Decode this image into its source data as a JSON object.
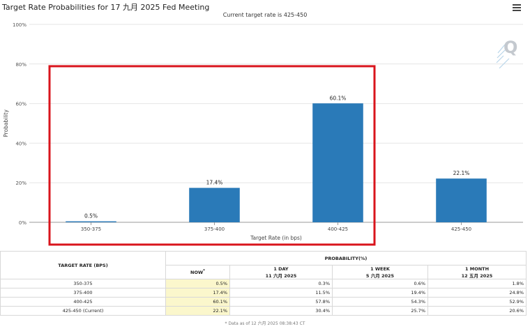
{
  "header": {
    "title": "Target Rate Probabilities for 17 九月 2025 Fed Meeting",
    "subtitle": "Current target rate is 425-450"
  },
  "logo_glyph": "Q",
  "chart_data": {
    "type": "bar",
    "categories": [
      "350-375",
      "375-400",
      "400-425",
      "425-450"
    ],
    "values": [
      0.5,
      17.4,
      60.1,
      22.1
    ],
    "data_labels": [
      "0.5%",
      "17.4%",
      "60.1%",
      "22.1%"
    ],
    "xlabel": "Target Rate (in bps)",
    "ylabel": "Probability",
    "ylim": [
      0,
      100
    ],
    "yticks": [
      0,
      20,
      40,
      60,
      80,
      100
    ],
    "ytick_labels": [
      "0%",
      "20%",
      "40%",
      "60%",
      "80%",
      "100%"
    ],
    "bar_color": "#2a7ab8",
    "highlight_color": "#d9141c",
    "highlighted_categories": [
      "350-375",
      "375-400",
      "400-425"
    ]
  },
  "table": {
    "col_target": "TARGET RATE (BPS)",
    "col_probability": "PROBABILITY(%)",
    "sub": [
      {
        "line1": "NOW",
        "sup": "*",
        "line2": ""
      },
      {
        "line1": "1 DAY",
        "line2": "11 六月 2025"
      },
      {
        "line1": "1 WEEK",
        "line2": "5 六月 2025"
      },
      {
        "line1": "1 MONTH",
        "line2": "12 五月 2025"
      }
    ],
    "rows": [
      {
        "rate": "350-375",
        "now": "0.5%",
        "day": "0.3%",
        "week": "0.6%",
        "month": "1.8%"
      },
      {
        "rate": "375-400",
        "now": "17.4%",
        "day": "11.5%",
        "week": "19.4%",
        "month": "24.8%"
      },
      {
        "rate": "400-425",
        "now": "60.1%",
        "day": "57.8%",
        "week": "54.3%",
        "month": "52.9%"
      },
      {
        "rate": "425-450 (Current)",
        "now": "22.1%",
        "day": "30.4%",
        "week": "25.7%",
        "month": "20.6%"
      }
    ],
    "now_highlight": "#fbf7cc"
  },
  "footnote": "* Data as of 12 六月 2025 08:38:43 CT"
}
